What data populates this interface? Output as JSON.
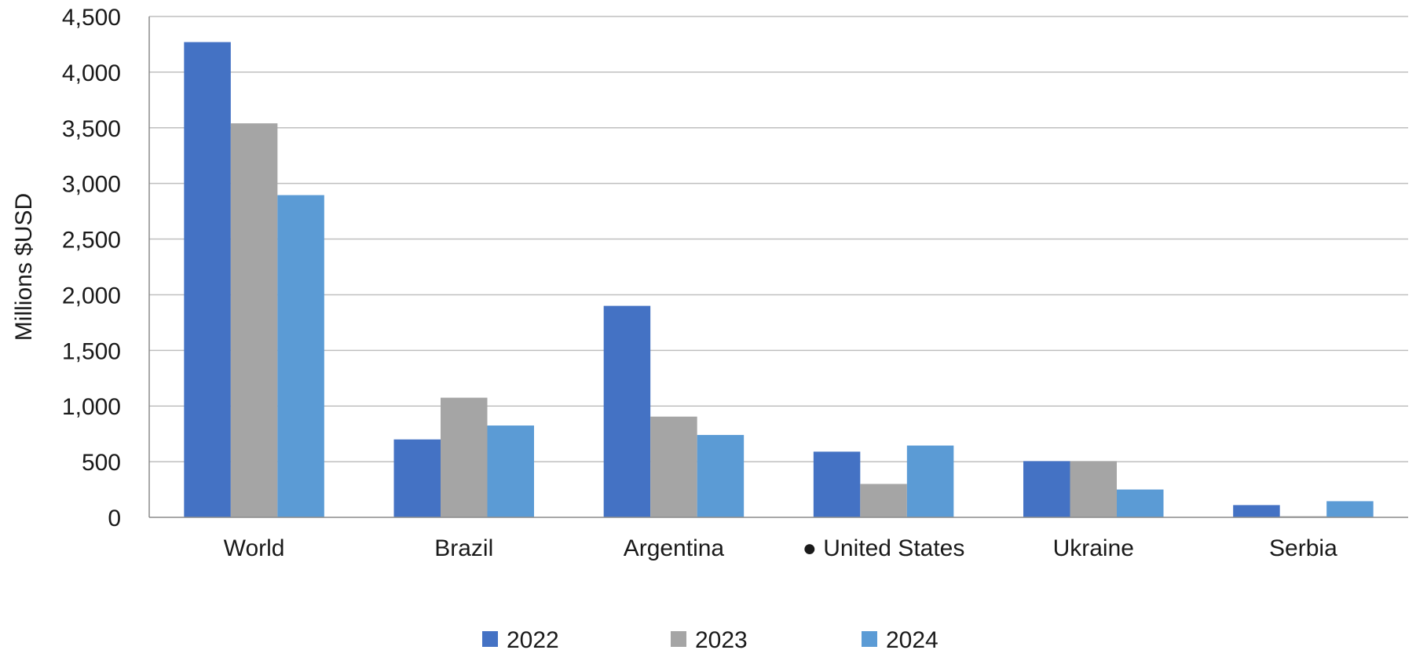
{
  "chart_data": {
    "type": "bar",
    "categories": [
      "World",
      "Brazil",
      "Argentina",
      "● United States",
      "Ukraine",
      "Serbia"
    ],
    "series": [
      {
        "name": "2022",
        "color": "#4472C4",
        "values": [
          4270,
          700,
          1900,
          590,
          505,
          110
        ]
      },
      {
        "name": "2023",
        "color": "#A5A5A5",
        "values": [
          3540,
          1075,
          905,
          300,
          505,
          10
        ]
      },
      {
        "name": "2024",
        "color": "#5B9BD5",
        "values": [
          2895,
          825,
          740,
          645,
          250,
          145
        ]
      }
    ],
    "ylabel": "Millions $USD",
    "ylim": [
      0,
      4500
    ],
    "yticks": [
      0,
      500,
      1000,
      1500,
      2000,
      2500,
      3000,
      3500,
      4000,
      4500
    ],
    "ytick_labels": [
      "0",
      "500",
      "1,000",
      "1,500",
      "2,000",
      "2,500",
      "3,000",
      "3,500",
      "4,000",
      "4,500"
    ],
    "grid": true,
    "legend_position": "bottom"
  }
}
